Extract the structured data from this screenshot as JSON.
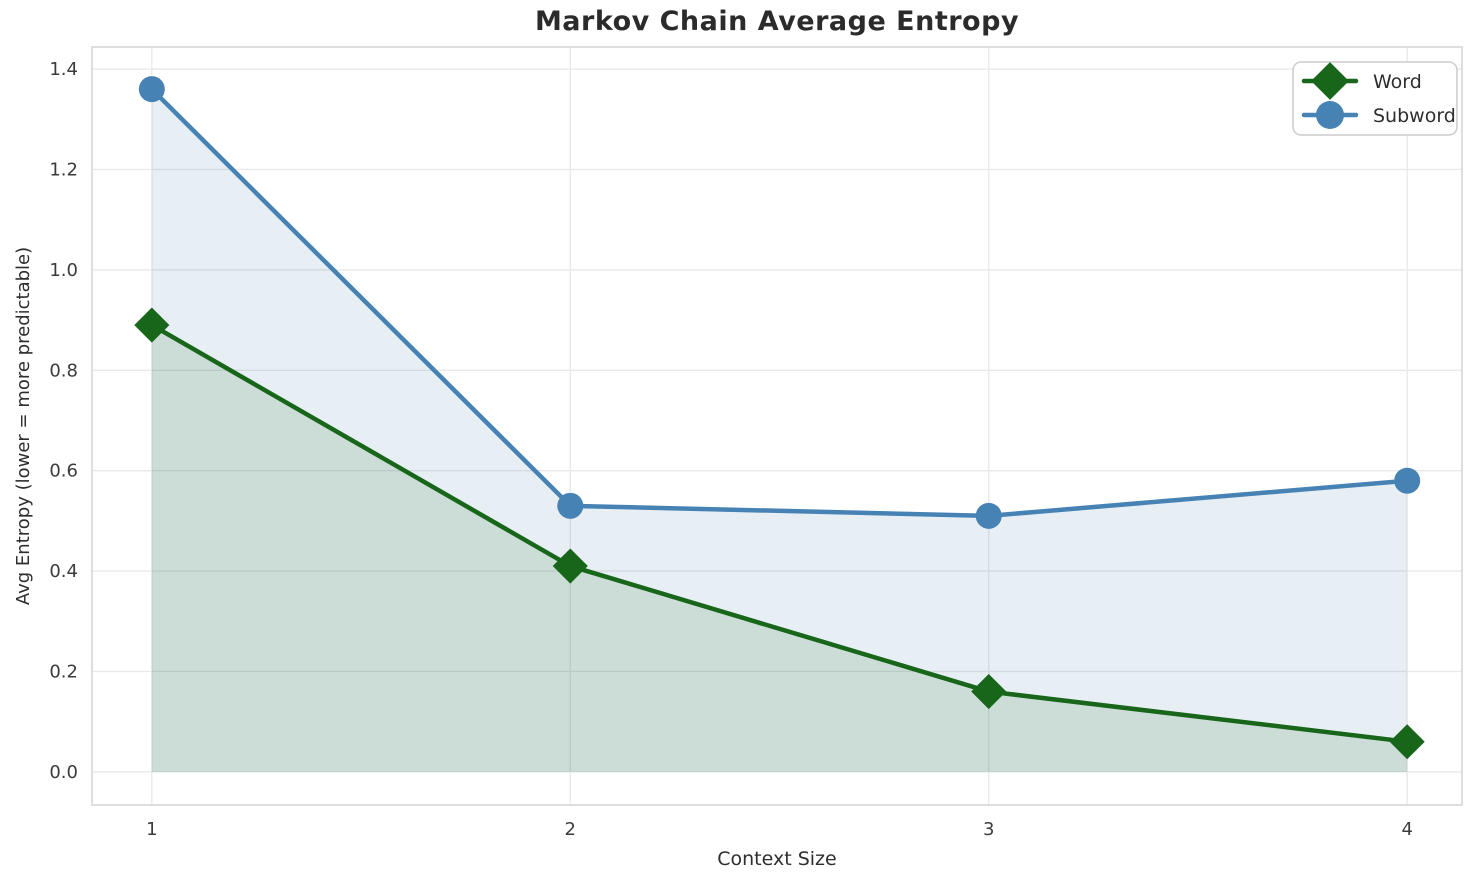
{
  "title": "Markov Chain Average Entropy",
  "chart_data": {
    "type": "line",
    "x": [
      1,
      2,
      3,
      4
    ],
    "series": [
      {
        "name": "Word",
        "values": [
          0.89,
          0.41,
          0.16,
          0.06
        ],
        "color": "#17661a",
        "marker": "diamond",
        "area_fill": true
      },
      {
        "name": "Subword",
        "values": [
          1.36,
          0.53,
          0.51,
          0.58
        ],
        "color": "#4682B4",
        "marker": "circle",
        "area_fill": true
      }
    ],
    "xlabel": "Context Size",
    "ylabel": "Avg Entropy (lower = more predictable)",
    "xtick_labels": [
      "1",
      "2",
      "3",
      "4"
    ],
    "ytick_values": [
      0.0,
      0.2,
      0.4,
      0.6,
      0.8,
      1.0,
      1.2,
      1.4
    ],
    "ytick_labels": [
      "0.0",
      "0.2",
      "0.4",
      "0.6",
      "0.8",
      "1.0",
      "1.2",
      "1.4"
    ],
    "xlim": [
      0.857,
      4.131
    ],
    "ylim": [
      -0.066,
      1.444
    ],
    "grid": true,
    "legend_position": "upper right",
    "colors": {
      "grid": "#e9e9e9",
      "spine": "#d4d4d4",
      "tick_text": "#3b3b3b",
      "legend_border": "#cccccc",
      "background": "#ffffff"
    }
  }
}
